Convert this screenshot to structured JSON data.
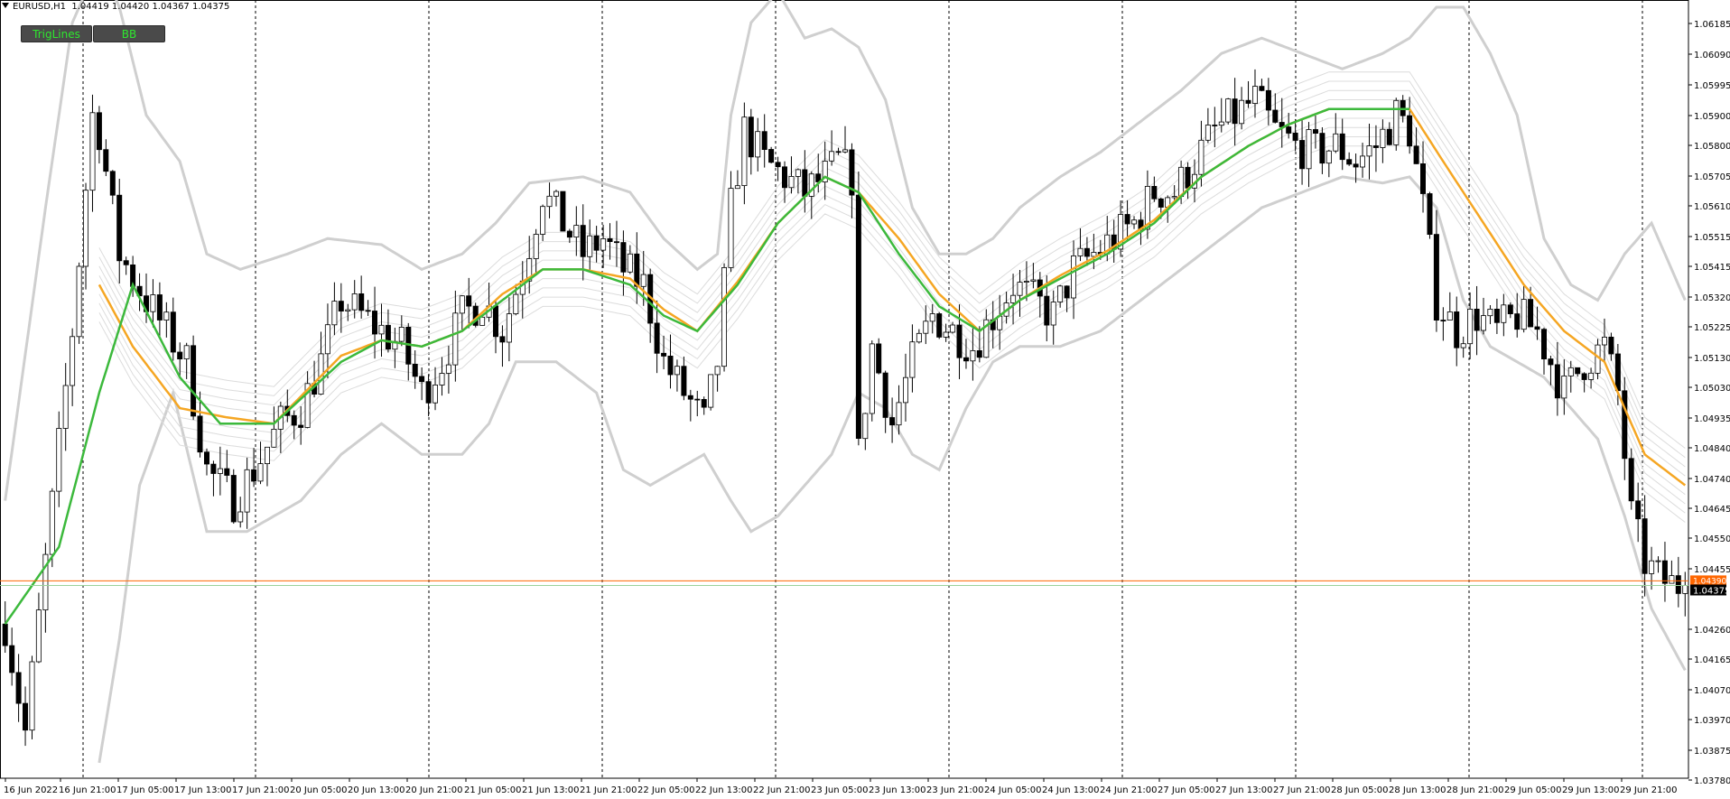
{
  "header": {
    "symbol": "EURUSD,H1",
    "ohlc": "1.04419 1.04420 1.04367 1.04375"
  },
  "buttons": [
    {
      "label": "TrigLines"
    },
    {
      "label": "BB"
    }
  ],
  "colors": {
    "bull_candle": "#ffffff",
    "bear_candle": "#000000",
    "upper_line": "#3cb93c",
    "lower_line": "#f5a623",
    "bands": "#cfcfcf",
    "price_line": "#ff6600",
    "button_text": "#2ee82e"
  },
  "chart_data": {
    "type": "candlestick",
    "ylim": [
      1.0375,
      1.0625
    ],
    "y_ticks": [
      "1.06185",
      "1.06090",
      "1.05995",
      "1.05900",
      "1.05800",
      "1.05705",
      "1.05610",
      "1.05515",
      "1.05415",
      "1.05320",
      "1.05225",
      "1.05130",
      "1.05030",
      "1.04935",
      "1.04840",
      "1.04740",
      "1.04645",
      "1.04550",
      "1.04455",
      "1.04375",
      "1.04260",
      "1.04165",
      "1.04070",
      "1.03970",
      "1.03875",
      "1.03780"
    ],
    "x_ticks": [
      "16 Jun 2022",
      "16 Jun 21:00",
      "17 Jun 05:00",
      "17 Jun 13:00",
      "17 Jun 21:00",
      "20 Jun 05:00",
      "20 Jun 13:00",
      "20 Jun 21:00",
      "21 Jun 05:00",
      "21 Jun 13:00",
      "21 Jun 21:00",
      "22 Jun 05:00",
      "22 Jun 13:00",
      "22 Jun 21:00",
      "23 Jun 05:00",
      "23 Jun 13:00",
      "23 Jun 21:00",
      "24 Jun 05:00",
      "24 Jun 13:00",
      "24 Jun 21:00",
      "27 Jun 05:00",
      "27 Jun 13:00",
      "27 Jun 21:00",
      "28 Jun 05:00",
      "28 Jun 13:00",
      "28 Jun 21:00",
      "29 Jun 05:00",
      "29 Jun 13:00",
      "29 Jun 21:00"
    ],
    "current_price": "1.04375",
    "current_price_prev": "1.04390",
    "close_path": [
      [
        0,
        1.0425
      ],
      [
        3,
        1.039
      ],
      [
        6,
        1.0445
      ],
      [
        10,
        1.052
      ],
      [
        13,
        1.059
      ],
      [
        14,
        1.0585
      ],
      [
        17,
        1.0545
      ],
      [
        21,
        1.053
      ],
      [
        24,
        1.052
      ],
      [
        27,
        1.051
      ],
      [
        30,
        1.0475
      ],
      [
        34,
        1.0465
      ],
      [
        37,
        1.0475
      ],
      [
        41,
        1.049
      ],
      [
        44,
        1.0495
      ],
      [
        47,
        1.051
      ],
      [
        50,
        1.053
      ],
      [
        53,
        1.0525
      ],
      [
        56,
        1.052
      ],
      [
        59,
        1.0515
      ],
      [
        62,
        1.05
      ],
      [
        65,
        1.051
      ],
      [
        68,
        1.0525
      ],
      [
        71,
        1.053
      ],
      [
        74,
        1.052
      ],
      [
        77,
        1.054
      ],
      [
        80,
        1.0565
      ],
      [
        83,
        1.0555
      ],
      [
        86,
        1.0545
      ],
      [
        89,
        1.055
      ],
      [
        92,
        1.054
      ],
      [
        95,
        1.0535
      ],
      [
        98,
        1.051
      ],
      [
        101,
        1.05
      ],
      [
        104,
        1.049
      ],
      [
        106,
        1.051
      ],
      [
        108,
        1.056
      ],
      [
        110,
        1.0585
      ],
      [
        113,
        1.0575
      ],
      [
        116,
        1.057
      ],
      [
        119,
        1.0565
      ],
      [
        122,
        1.057
      ],
      [
        124,
        1.0575
      ],
      [
        126,
        1.057
      ],
      [
        127,
        1.048
      ],
      [
        129,
        1.0515
      ],
      [
        132,
        1.049
      ],
      [
        135,
        1.051
      ],
      [
        138,
        1.0525
      ],
      [
        141,
        1.052
      ],
      [
        144,
        1.0515
      ],
      [
        147,
        1.0525
      ],
      [
        150,
        1.0535
      ],
      [
        153,
        1.053
      ],
      [
        156,
        1.0525
      ],
      [
        159,
        1.054
      ],
      [
        162,
        1.0545
      ],
      [
        165,
        1.055
      ],
      [
        168,
        1.0555
      ],
      [
        171,
        1.0565
      ],
      [
        174,
        1.0565
      ],
      [
        177,
        1.0575
      ],
      [
        180,
        1.0585
      ],
      [
        183,
        1.059
      ],
      [
        186,
        1.0595
      ],
      [
        189,
        1.0585
      ],
      [
        192,
        1.058
      ],
      [
        195,
        1.0578
      ],
      [
        198,
        1.058
      ],
      [
        201,
        1.0575
      ],
      [
        204,
        1.058
      ],
      [
        207,
        1.059
      ],
      [
        209,
        1.0585
      ],
      [
        211,
        1.056
      ],
      [
        213,
        1.053
      ],
      [
        216,
        1.052
      ],
      [
        219,
        1.0525
      ],
      [
        222,
        1.052
      ],
      [
        225,
        1.0525
      ],
      [
        228,
        1.052
      ],
      [
        230,
        1.051
      ],
      [
        232,
        1.05
      ],
      [
        235,
        1.051
      ],
      [
        238,
        1.0515
      ],
      [
        240,
        1.05
      ],
      [
        242,
        1.046
      ],
      [
        244,
        1.0445
      ],
      [
        246,
        1.044
      ],
      [
        248,
        1.0438
      ],
      [
        250,
        1.04375
      ]
    ],
    "upper_line_path": [
      [
        0,
        1.0425
      ],
      [
        8,
        1.045
      ],
      [
        14,
        1.05
      ],
      [
        19,
        1.0535
      ],
      [
        26,
        1.0505
      ],
      [
        32,
        1.049
      ],
      [
        40,
        1.049
      ],
      [
        50,
        1.051
      ],
      [
        56,
        1.0517
      ],
      [
        62,
        1.0515
      ],
      [
        68,
        1.052
      ],
      [
        74,
        1.053
      ],
      [
        80,
        1.054
      ],
      [
        86,
        1.054
      ],
      [
        93,
        1.0535
      ],
      [
        98,
        1.0525
      ],
      [
        103,
        1.052
      ],
      [
        109,
        1.0535
      ],
      [
        115,
        1.0555
      ],
      [
        122,
        1.057
      ],
      [
        127,
        1.0565
      ],
      [
        133,
        1.0545
      ],
      [
        139,
        1.0528
      ],
      [
        145,
        1.052
      ],
      [
        151,
        1.053
      ],
      [
        157,
        1.0537
      ],
      [
        164,
        1.0545
      ],
      [
        171,
        1.0555
      ],
      [
        178,
        1.057
      ],
      [
        185,
        1.058
      ],
      [
        191,
        1.0587
      ],
      [
        197,
        1.0592
      ],
      [
        203,
        1.0592
      ],
      [
        209,
        1.0592
      ]
    ],
    "lower_line_path": [
      [
        14,
        1.0535
      ],
      [
        19,
        1.0515
      ],
      [
        26,
        1.0495
      ],
      [
        33,
        1.0492
      ],
      [
        40,
        1.049
      ],
      [
        50,
        1.0512
      ],
      [
        56,
        1.0517
      ],
      [
        62,
        1.0515
      ],
      [
        68,
        1.052
      ],
      [
        74,
        1.0532
      ],
      [
        80,
        1.054
      ],
      [
        86,
        1.054
      ],
      [
        93,
        1.0537
      ],
      [
        98,
        1.0527
      ],
      [
        103,
        1.052
      ],
      [
        109,
        1.0536
      ],
      [
        115,
        1.0555
      ],
      [
        122,
        1.057
      ],
      [
        127,
        1.0565
      ],
      [
        133,
        1.055
      ],
      [
        139,
        1.0532
      ],
      [
        145,
        1.052
      ],
      [
        151,
        1.053
      ],
      [
        157,
        1.0538
      ],
      [
        164,
        1.0546
      ],
      [
        171,
        1.0556
      ],
      [
        178,
        1.057
      ],
      [
        185,
        1.058
      ],
      [
        191,
        1.0587
      ],
      [
        197,
        1.0592
      ],
      [
        203,
        1.0592
      ],
      [
        209,
        1.0592
      ],
      [
        214,
        1.0575
      ],
      [
        220,
        1.0555
      ],
      [
        226,
        1.0535
      ],
      [
        232,
        1.052
      ],
      [
        238,
        1.051
      ],
      [
        244,
        1.048
      ],
      [
        250,
        1.047
      ]
    ],
    "bb_upper_path": [
      [
        0,
        1.0465
      ],
      [
        6,
        1.056
      ],
      [
        10,
        1.062
      ],
      [
        14,
        1.064
      ],
      [
        17,
        1.0625
      ],
      [
        21,
        1.059
      ],
      [
        26,
        1.0575
      ],
      [
        30,
        1.0545
      ],
      [
        35,
        1.054
      ],
      [
        42,
        1.0545
      ],
      [
        48,
        1.055
      ],
      [
        56,
        1.0548
      ],
      [
        62,
        1.054
      ],
      [
        68,
        1.0545
      ],
      [
        73,
        1.0555
      ],
      [
        78,
        1.0568
      ],
      [
        86,
        1.057
      ],
      [
        93,
        1.0565
      ],
      [
        98,
        1.055
      ],
      [
        103,
        1.054
      ],
      [
        106,
        1.0545
      ],
      [
        108,
        1.059
      ],
      [
        111,
        1.062
      ],
      [
        115,
        1.063
      ],
      [
        119,
        1.0615
      ],
      [
        123,
        1.0618
      ],
      [
        127,
        1.0612
      ],
      [
        131,
        1.0595
      ],
      [
        135,
        1.056
      ],
      [
        139,
        1.0545
      ],
      [
        143,
        1.0545
      ],
      [
        147,
        1.055
      ],
      [
        151,
        1.056
      ],
      [
        157,
        1.057
      ],
      [
        163,
        1.0578
      ],
      [
        169,
        1.0588
      ],
      [
        175,
        1.0598
      ],
      [
        181,
        1.061
      ],
      [
        187,
        1.0615
      ],
      [
        193,
        1.061
      ],
      [
        199,
        1.0605
      ],
      [
        205,
        1.061
      ],
      [
        209,
        1.0615
      ],
      [
        213,
        1.0625
      ],
      [
        217,
        1.0625
      ],
      [
        221,
        1.061
      ],
      [
        225,
        1.059
      ],
      [
        229,
        1.055
      ],
      [
        233,
        1.0535
      ],
      [
        237,
        1.053
      ],
      [
        241,
        1.0545
      ],
      [
        245,
        1.0555
      ],
      [
        250,
        1.053
      ]
    ],
    "bb_lower_path": [
      [
        14,
        1.038
      ],
      [
        17,
        1.042
      ],
      [
        20,
        1.047
      ],
      [
        25,
        1.05
      ],
      [
        30,
        1.0455
      ],
      [
        36,
        1.0455
      ],
      [
        44,
        1.0465
      ],
      [
        50,
        1.048
      ],
      [
        56,
        1.049
      ],
      [
        62,
        1.048
      ],
      [
        68,
        1.048
      ],
      [
        72,
        1.049
      ],
      [
        76,
        1.051
      ],
      [
        82,
        1.051
      ],
      [
        88,
        1.05
      ],
      [
        92,
        1.0475
      ],
      [
        96,
        1.047
      ],
      [
        100,
        1.0475
      ],
      [
        104,
        1.048
      ],
      [
        108,
        1.0465
      ],
      [
        111,
        1.0455
      ],
      [
        115,
        1.046
      ],
      [
        119,
        1.047
      ],
      [
        123,
        1.048
      ],
      [
        127,
        1.05
      ],
      [
        131,
        1.0495
      ],
      [
        135,
        1.048
      ],
      [
        139,
        1.0475
      ],
      [
        143,
        1.0495
      ],
      [
        147,
        1.051
      ],
      [
        151,
        1.0515
      ],
      [
        157,
        1.0515
      ],
      [
        163,
        1.052
      ],
      [
        169,
        1.053
      ],
      [
        175,
        1.054
      ],
      [
        181,
        1.055
      ],
      [
        187,
        1.056
      ],
      [
        193,
        1.0565
      ],
      [
        199,
        1.057
      ],
      [
        205,
        1.0568
      ],
      [
        209,
        1.057
      ],
      [
        213,
        1.056
      ],
      [
        217,
        1.053
      ],
      [
        221,
        1.0515
      ],
      [
        225,
        1.051
      ],
      [
        229,
        1.0505
      ],
      [
        233,
        1.0495
      ],
      [
        237,
        1.0485
      ],
      [
        241,
        1.046
      ],
      [
        245,
        1.043
      ],
      [
        250,
        1.041
      ]
    ]
  }
}
